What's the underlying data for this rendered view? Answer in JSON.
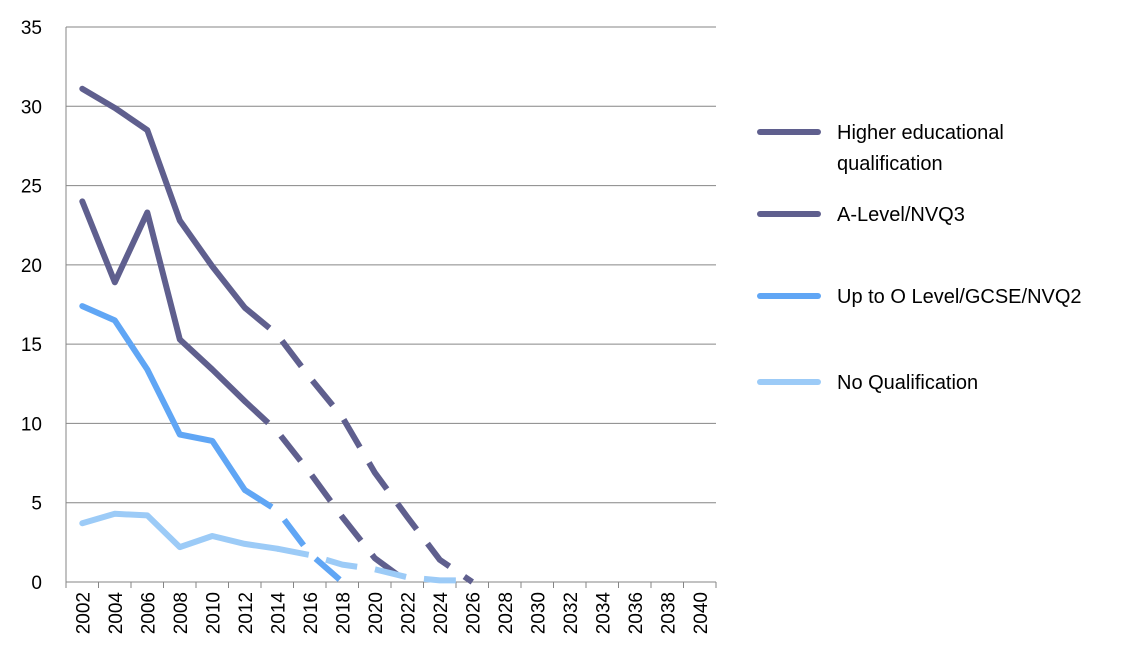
{
  "chart_data": {
    "type": "line",
    "x": [
      "2002",
      "2004",
      "2006",
      "2008",
      "2010",
      "2012",
      "2014",
      "2016",
      "2018",
      "2020",
      "2022",
      "2024",
      "2026",
      "2028",
      "2030",
      "2032",
      "2034",
      "2036",
      "2038",
      "2040"
    ],
    "ylim": [
      0,
      35
    ],
    "yticks": [
      0,
      5,
      10,
      15,
      20,
      25,
      30,
      35
    ],
    "grid": true,
    "legend_position": "right",
    "series": [
      {
        "name": "Higher educational qualification",
        "color": "#5f5f8e",
        "values": [
          31.1,
          29.9,
          28.5,
          22.8,
          19.9,
          17.3,
          15.6,
          12.9,
          10.4,
          6.9,
          4.1,
          1.4,
          0.0,
          null,
          null,
          null,
          null,
          null,
          null,
          null
        ],
        "dashed_from": "2012"
      },
      {
        "name": "A-Level/NVQ3",
        "color": "#5f5f8e",
        "values": [
          24.0,
          18.9,
          23.3,
          15.3,
          13.4,
          11.4,
          9.5,
          6.9,
          4.1,
          1.5,
          0.0,
          null,
          null,
          null,
          null,
          null,
          null,
          null,
          null,
          null
        ],
        "dashed_from": "2012"
      },
      {
        "name": "Up to O Level/GCSE/NVQ2",
        "color": "#60a6f5",
        "values": [
          17.4,
          16.5,
          13.4,
          9.3,
          8.9,
          5.8,
          4.5,
          1.8,
          0.0,
          null,
          null,
          null,
          null,
          null,
          null,
          null,
          null,
          null,
          null,
          null
        ],
        "dashed_from": "2012"
      },
      {
        "name": "No Qualification",
        "color": "#9ccbf7",
        "values": [
          3.7,
          4.3,
          4.2,
          2.2,
          2.9,
          2.4,
          2.1,
          1.7,
          1.1,
          0.8,
          0.3,
          0.1,
          0.1,
          null,
          null,
          null,
          null,
          null,
          null,
          null
        ],
        "dashed_from": "2014"
      }
    ]
  }
}
